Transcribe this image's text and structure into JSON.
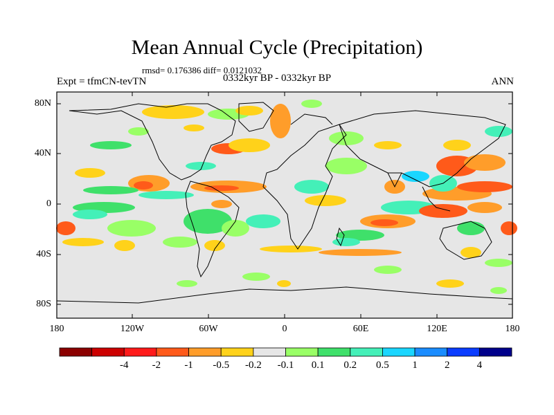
{
  "title": "Mean Annual Cycle (Precipitation)",
  "stats": "rmsd= 0.176386 diff= 0.0121032",
  "experiment": "Expt = tfmCN-tevTN",
  "period": "0332kyr BP - 0332kyr BP",
  "season": "ANN",
  "lat_ticks": [
    "80N",
    "40N",
    "0",
    "40S",
    "80S"
  ],
  "lon_ticks": [
    "180",
    "120W",
    "60W",
    "0",
    "60E",
    "120E",
    "180"
  ],
  "colorbar": {
    "colors": [
      "#8b0000",
      "#cc0000",
      "#ff1a1a",
      "#ff5a1a",
      "#ff9d2a",
      "#ffd21a",
      "#e6e6e6",
      "#99ff66",
      "#3fe06a",
      "#44f0b8",
      "#1ad6ff",
      "#1a8cff",
      "#0a3cff",
      "#00008b"
    ],
    "labels": [
      "-4",
      "-2",
      "-1",
      "-0.5",
      "-0.2",
      "-0.1",
      "0.1",
      "0.2",
      "0.5",
      "1",
      "2",
      "4"
    ]
  }
}
